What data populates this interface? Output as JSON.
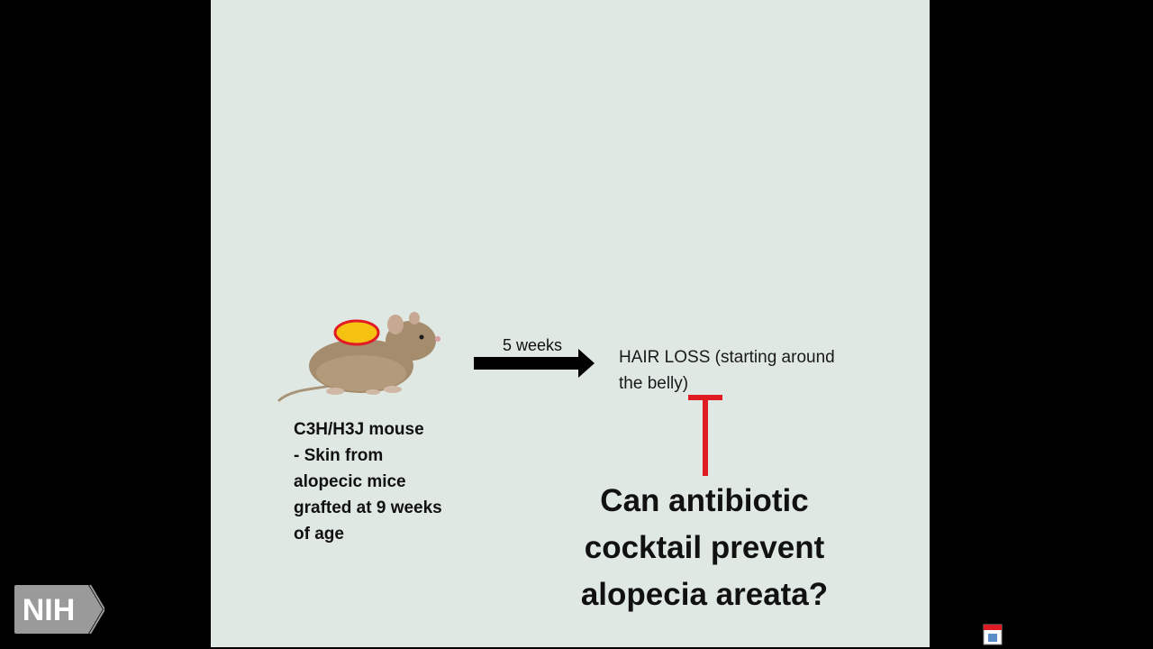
{
  "slide": {
    "mouse_caption": [
      "C3H/H3J mouse",
      "- Skin from",
      "alopecic mice",
      "grafted at 9 weeks",
      "of age"
    ],
    "arrow_label": "5 weeks",
    "outcome_lines": [
      "HAIR LOSS (starting around",
      "the belly)"
    ],
    "question_lines": [
      "Can antibiotic",
      "cocktail prevent",
      "alopecia areata?"
    ]
  },
  "branding": {
    "logo_text": "NIH"
  },
  "icons": {
    "mouse": "mouse-illustration",
    "graft_site": "graft-site-oval",
    "arrow": "right-arrow-icon",
    "inhibition": "inhibition-t-icon",
    "corner": "app-icon"
  },
  "colors": {
    "slide_background": "#dfe8e2",
    "graft_fill": "#f5c211",
    "graft_outline": "#e01b24",
    "inhibition": "#e01b24",
    "arrow": "#000000"
  }
}
